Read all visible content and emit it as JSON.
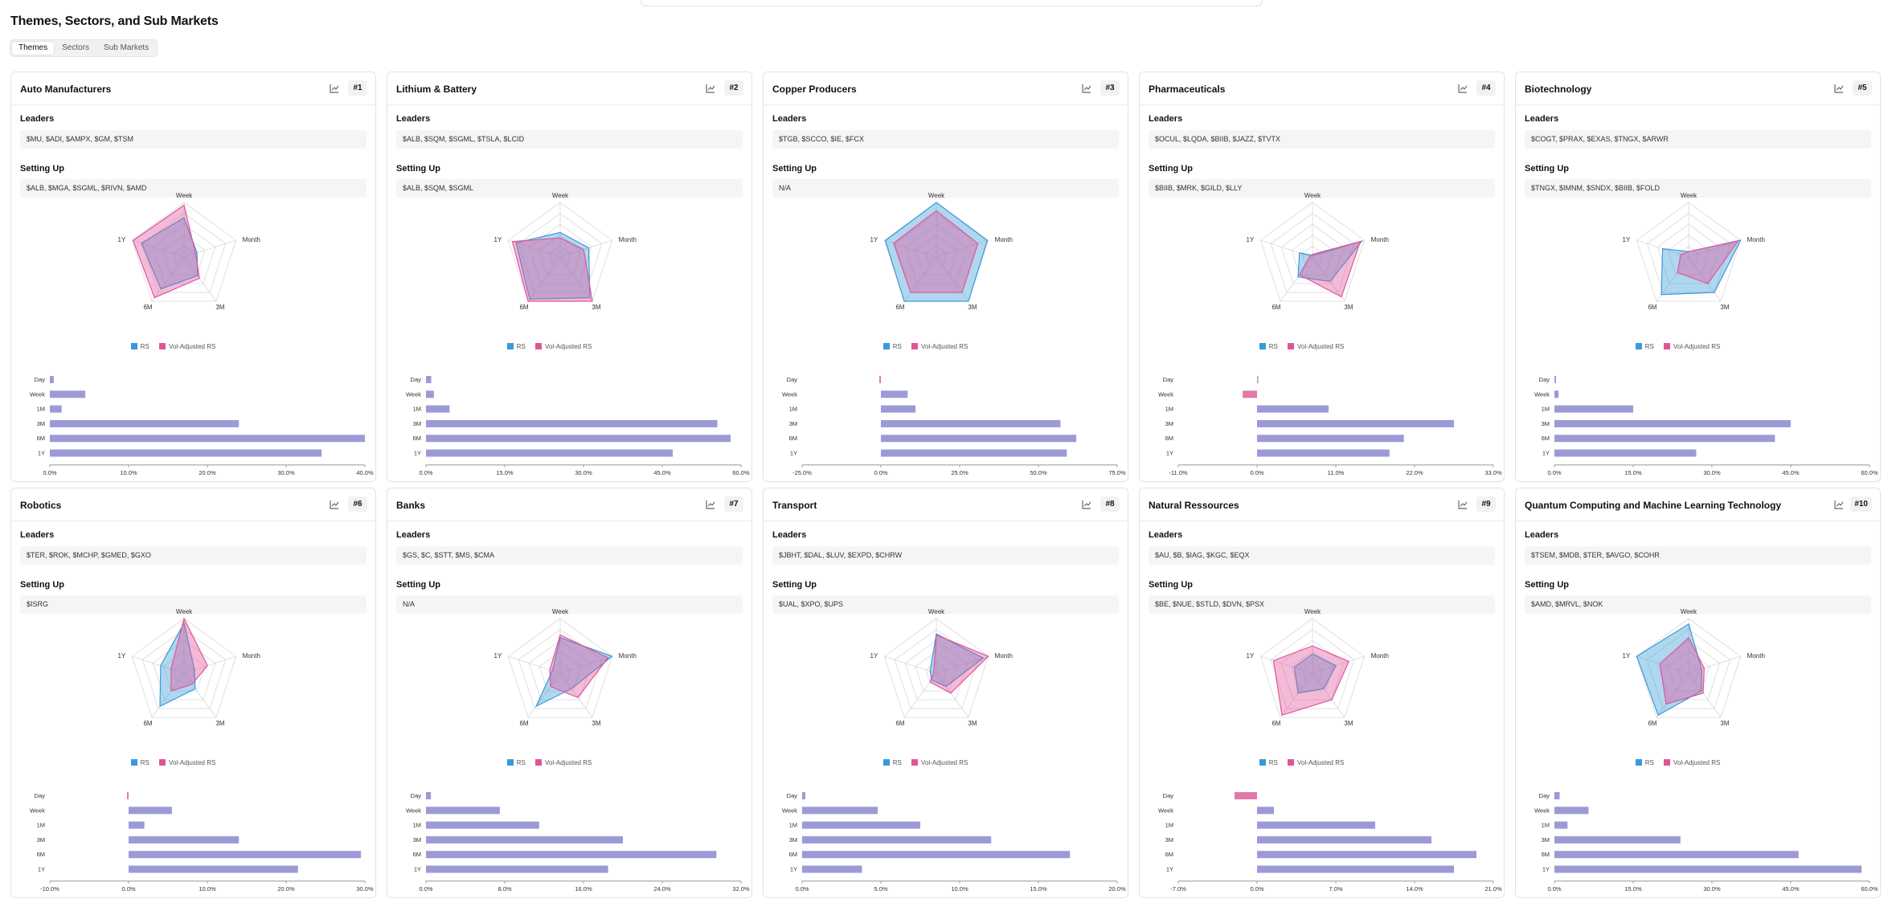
{
  "page": {
    "title": "Themes, Sectors, and Sub Markets"
  },
  "tabs": [
    {
      "label": "Themes",
      "active": true
    },
    {
      "label": "Sectors",
      "active": false
    },
    {
      "label": "Sub Markets",
      "active": false
    }
  ],
  "labels": {
    "leaders": "Leaders",
    "setting_up": "Setting Up"
  },
  "legend": {
    "rs": "RS",
    "vol_adjusted_rs": "Vol-Adjusted RS"
  },
  "colors": {
    "rs": "#3a9ad9",
    "vol_adjusted_rs": "#e0559a",
    "bars": "#9c9ad6",
    "bars_negative": "#e07aa8"
  },
  "radar_axes": [
    "Week",
    "Month",
    "3M",
    "6M",
    "1Y"
  ],
  "bar_periods": [
    "Day",
    "Week",
    "1M",
    "3M",
    "6M",
    "1Y"
  ],
  "cards": [
    {
      "title": "Auto Manufacturers",
      "rank": "#1",
      "leaders": "$MU, $ADI, $AMPX, $GM, $TSM",
      "setting_up": "$ALB, $MGA, $SGML, $RIVN, $AMD",
      "radar": {
        "rs": [
          0.72,
          0.25,
          0.42,
          0.72,
          0.82
        ],
        "vol_adjusted_rs": [
          0.95,
          0.22,
          0.48,
          0.92,
          0.98
        ]
      },
      "bars": {
        "values": [
          0.5,
          4.5,
          1.5,
          24,
          40,
          34.5
        ],
        "ticks": [
          0,
          10,
          20,
          30,
          40
        ],
        "ticklabels": [
          "0.0%",
          "10.0%",
          "20.0%",
          "30.0%",
          "40.0%"
        ],
        "min": 0,
        "max": 40
      }
    },
    {
      "title": "Lithium & Battery",
      "rank": "#2",
      "leaders": "$ALB, $SQM, $SGML, $TSLA, $LCID",
      "setting_up": "$ALB, $SQM, $SGML",
      "radar": {
        "rs": [
          0.45,
          0.55,
          0.92,
          0.95,
          0.85
        ],
        "vol_adjusted_rs": [
          0.35,
          0.45,
          1.0,
          1.0,
          0.92
        ]
      },
      "bars": {
        "values": [
          1,
          1.5,
          4.5,
          55.5,
          58,
          47
        ],
        "ticks": [
          0,
          15,
          30,
          45,
          60
        ],
        "ticklabels": [
          "0.0%",
          "15.0%",
          "30.0%",
          "45.0%",
          "60.0%"
        ],
        "min": 0,
        "max": 60
      }
    },
    {
      "title": "Copper Producers",
      "rank": "#3",
      "leaders": "$TGB, $SCCO, $IE, $FCX",
      "setting_up": "N/A",
      "radar": {
        "rs": [
          1.0,
          0.98,
          1.0,
          1.0,
          0.98
        ],
        "vol_adjusted_rs": [
          0.85,
          0.8,
          0.8,
          0.8,
          0.82
        ]
      },
      "bars": {
        "values": [
          -0.5,
          8.5,
          11,
          57,
          62,
          59
        ],
        "ticks": [
          -25,
          0,
          25,
          50,
          75
        ],
        "ticklabels": [
          "-25.0%",
          "0.0%",
          "25.0%",
          "50.0%",
          "75.0%"
        ],
        "min": -25,
        "max": 75
      }
    },
    {
      "title": "Pharmaceuticals",
      "rank": "#4",
      "leaders": "$OCUL, $LQDA, $BIIB, $JAZZ, $TVTX",
      "setting_up": "$BIIB, $MRK, $GILD, $LLY",
      "radar": {
        "rs": [
          0.0,
          0.95,
          0.55,
          0.45,
          0.25
        ],
        "vol_adjusted_rs": [
          0.05,
          0.92,
          0.9,
          0.4,
          0.05
        ]
      },
      "bars": {
        "values": [
          0,
          -2,
          10,
          27.5,
          20.5,
          18.5
        ],
        "ticks": [
          -11,
          0,
          11,
          22,
          33
        ],
        "ticklabels": [
          "-11.0%",
          "0.0%",
          "11.0%",
          "22.0%",
          "33.0%"
        ],
        "min": -11,
        "max": 33
      }
    },
    {
      "title": "Biotechnology",
      "rank": "#5",
      "leaders": "$COGT, $PRAX, $EXAS, $TNGX, $ARWR",
      "setting_up": "$TNGX, $IMNM, $SNDX, $BIIB, $FOLD",
      "radar": {
        "rs": [
          0.1,
          1.0,
          0.8,
          0.85,
          0.5
        ],
        "vol_adjusted_rs": [
          0.1,
          0.95,
          0.6,
          0.35,
          0.15
        ]
      },
      "bars": {
        "values": [
          0.3,
          0.8,
          15,
          45,
          42,
          27
        ],
        "ticks": [
          0,
          15,
          30,
          45,
          60
        ],
        "ticklabels": [
          "0.0%",
          "15.0%",
          "30.0%",
          "45.0%",
          "60.0%"
        ],
        "min": 0,
        "max": 60
      }
    },
    {
      "title": "Robotics",
      "rank": "#6",
      "leaders": "$TER, $ROK, $MCHP, $GMED, $GXO",
      "setting_up": "$ISRG",
      "radar": {
        "rs": [
          0.92,
          0.2,
          0.35,
          0.75,
          0.45
        ],
        "vol_adjusted_rs": [
          1.0,
          0.45,
          0.25,
          0.4,
          0.25
        ]
      },
      "bars": {
        "values": [
          -0.2,
          5.5,
          2,
          14,
          29.5,
          21.5
        ],
        "ticks": [
          -10,
          0,
          10,
          20,
          30
        ],
        "ticklabels": [
          "-10.0%",
          "0.0%",
          "10.0%",
          "20.0%",
          "30.0%"
        ],
        "min": -10,
        "max": 30
      }
    },
    {
      "title": "Banks",
      "rank": "#7",
      "leaders": "$GS, $C, $STT, $MS, $CMA",
      "setting_up": "N/A",
      "radar": {
        "rs": [
          0.65,
          1.0,
          0.35,
          0.75,
          0.15
        ],
        "vol_adjusted_rs": [
          0.7,
          0.92,
          0.55,
          0.3,
          0.2
        ]
      },
      "bars": {
        "values": [
          0.5,
          7.5,
          11.5,
          20,
          29.5,
          18.5
        ],
        "ticks": [
          0,
          8,
          16,
          24,
          32
        ],
        "ticklabels": [
          "0.0%",
          "8.0%",
          "16.0%",
          "24.0%",
          "32.0%"
        ],
        "min": 0,
        "max": 32
      }
    },
    {
      "title": "Transport",
      "rank": "#8",
      "leaders": "$JBHT, $DAL, $LUV, $EXPD, $CHRW",
      "setting_up": "$UAL, $XPO, $UPS",
      "radar": {
        "rs": [
          0.72,
          0.9,
          0.3,
          0.15,
          0.12
        ],
        "vol_adjusted_rs": [
          0.7,
          1.0,
          0.45,
          0.2,
          0.05
        ]
      },
      "bars": {
        "values": [
          0.2,
          4.8,
          7.5,
          12,
          17,
          3.8
        ],
        "ticks": [
          0,
          5,
          10,
          15,
          20
        ],
        "ticklabels": [
          "0.0%",
          "5.0%",
          "10.0%",
          "15.0%",
          "20.0%"
        ],
        "min": 0,
        "max": 20
      }
    },
    {
      "title": "Natural Ressources",
      "rank": "#9",
      "leaders": "$AU, $B, $IAG, $KGC, $EQX",
      "setting_up": "$BE, $NUE, $STLD, $DVN, $PSX",
      "radar": {
        "rs": [
          0.35,
          0.45,
          0.35,
          0.45,
          0.35
        ],
        "vol_adjusted_rs": [
          0.5,
          0.7,
          0.6,
          0.95,
          0.75
        ]
      },
      "bars": {
        "values": [
          -2,
          1.5,
          10.5,
          15.5,
          19.5,
          17.5
        ],
        "ticks": [
          -7,
          0,
          7,
          14,
          21
        ],
        "ticklabels": [
          "-7.0%",
          "0.0%",
          "7.0%",
          "14.0%",
          "21.0%"
        ],
        "min": -7,
        "max": 21
      }
    },
    {
      "title": "Quantum Computing and Machine Learning Technology",
      "rank": "#10",
      "leaders": "$TSEM, $MDB, $TER, $AVGO, $COHR",
      "setting_up": "$AMD, $MRVL, $NOK",
      "radar": {
        "rs": [
          0.9,
          0.25,
          0.4,
          0.95,
          1.0
        ],
        "vol_adjusted_rs": [
          0.65,
          0.3,
          0.45,
          0.7,
          0.55
        ]
      },
      "bars": {
        "values": [
          1,
          6.5,
          2.5,
          24,
          46.5,
          58.5
        ],
        "ticks": [
          0,
          15,
          30,
          45,
          60
        ],
        "ticklabels": [
          "0.0%",
          "15.0%",
          "30.0%",
          "45.0%",
          "60.0%"
        ],
        "min": 0,
        "max": 60
      }
    }
  ]
}
